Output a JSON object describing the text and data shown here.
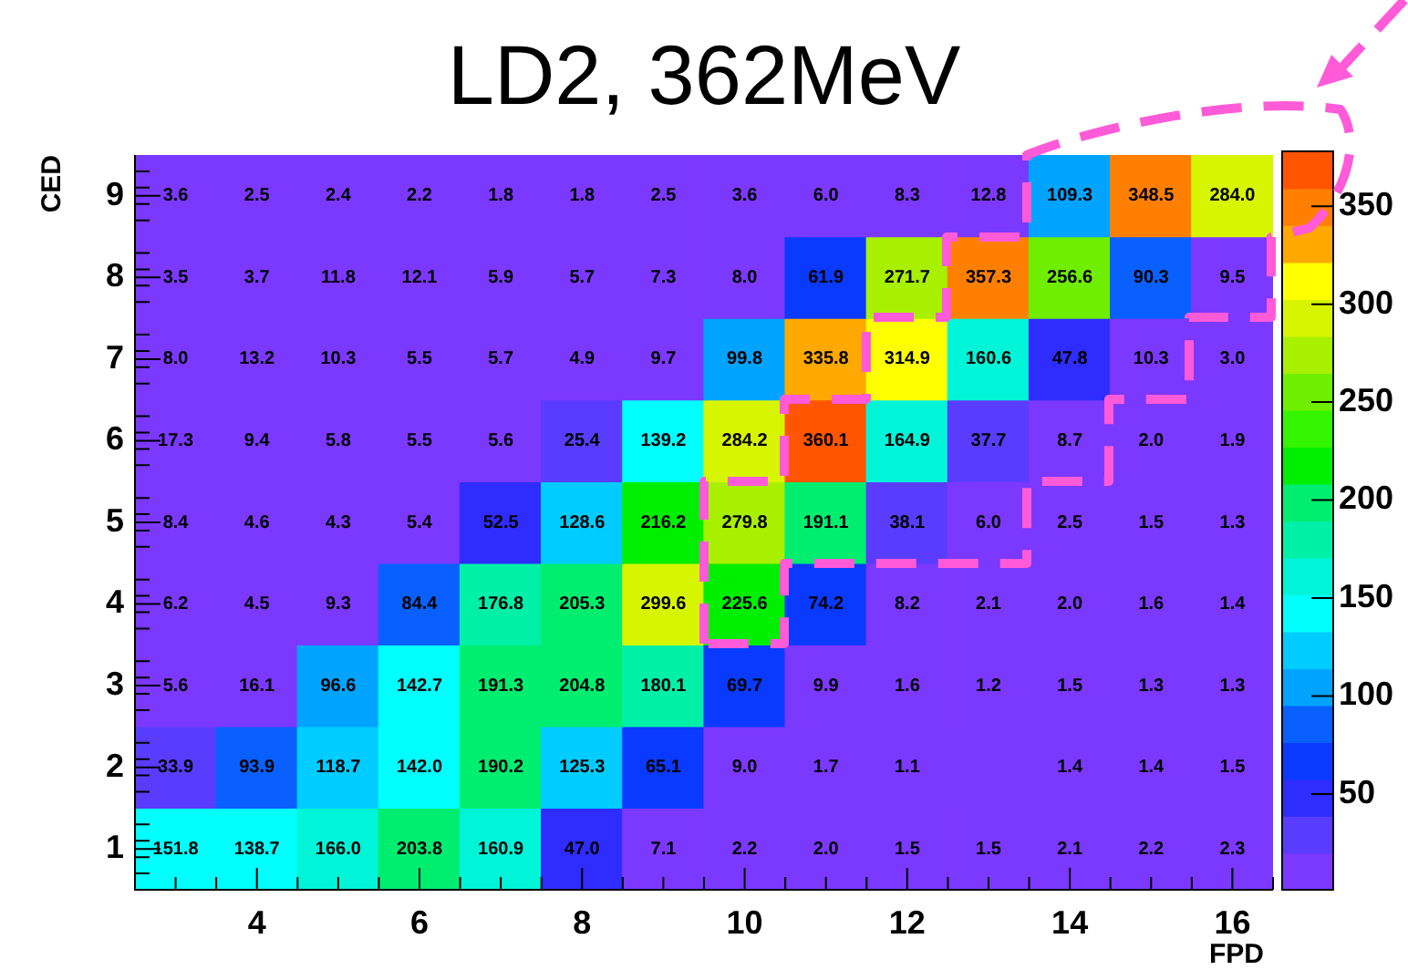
{
  "chart_data": {
    "type": "heatmap",
    "title": "LD2, 362MeV",
    "xlabel": "FPD",
    "ylabel": "CED",
    "categories": [
      null,
      "4",
      null,
      "6",
      null,
      "8",
      null,
      "10",
      null,
      "12",
      null,
      "14",
      null,
      "16"
    ],
    "y_categories": [
      "9",
      "8",
      "7",
      "6",
      "5",
      "4",
      "3",
      "2",
      "1"
    ],
    "cells": [
      [
        3.6,
        2.5,
        2.4,
        2.2,
        1.8,
        1.8,
        2.5,
        3.6,
        6.0,
        8.3,
        12.8,
        109.3,
        348.5,
        284.0
      ],
      [
        3.5,
        3.7,
        11.8,
        12.1,
        5.9,
        5.7,
        7.3,
        8.0,
        61.9,
        271.7,
        357.3,
        256.6,
        90.3,
        9.5
      ],
      [
        8.0,
        13.2,
        10.3,
        5.5,
        5.7,
        4.9,
        9.7,
        99.8,
        335.8,
        314.9,
        160.6,
        47.8,
        10.3,
        3.0
      ],
      [
        17.3,
        9.4,
        5.8,
        5.5,
        5.6,
        25.4,
        139.2,
        284.2,
        360.1,
        164.9,
        37.7,
        8.7,
        2.0,
        1.9
      ],
      [
        8.4,
        4.6,
        4.3,
        5.4,
        52.5,
        128.6,
        216.2,
        279.8,
        191.1,
        38.1,
        6.0,
        2.5,
        1.5,
        1.3
      ],
      [
        6.2,
        4.5,
        9.3,
        84.4,
        176.8,
        205.3,
        299.6,
        225.6,
        74.2,
        8.2,
        2.1,
        2.0,
        1.6,
        1.4
      ],
      [
        5.6,
        16.1,
        96.6,
        142.7,
        191.3,
        204.8,
        180.1,
        69.7,
        9.9,
        1.6,
        1.2,
        1.5,
        1.3,
        1.3
      ],
      [
        33.9,
        93.9,
        118.7,
        142.0,
        190.2,
        125.3,
        65.1,
        9.0,
        1.7,
        1.1,
        null,
        1.4,
        1.4,
        1.5
      ],
      [
        151.8,
        138.7,
        166.0,
        203.8,
        160.9,
        47.0,
        7.1,
        2.2,
        2.0,
        1.5,
        1.5,
        2.1,
        2.2,
        2.3
      ]
    ],
    "cell_labels": [
      [
        "3.6",
        "2.5",
        "2.4",
        "2.2",
        "1.8",
        "1.8",
        "2.5",
        "3.6",
        "6.0",
        "8.3",
        "12.8",
        "109.3",
        "348.5",
        "284.0"
      ],
      [
        "3.5",
        "3.7",
        "11.8",
        "12.1",
        "5.9",
        "5.7",
        "7.3",
        "8.0",
        "61.9",
        "271.7",
        "357.3",
        "256.6",
        "90.3",
        "9.5"
      ],
      [
        "8.0",
        "13.2",
        "10.3",
        "5.5",
        "5.7",
        "4.9",
        "9.7",
        "99.8",
        "335.8",
        "314.9",
        "160.6",
        "47.8",
        "10.3",
        "3.0"
      ],
      [
        "17.3",
        "9.4",
        "5.8",
        "5.5",
        "5.6",
        "25.4",
        "139.2",
        "284.2",
        "360.1",
        "164.9",
        "37.7",
        "8.7",
        "2.0",
        "1.9"
      ],
      [
        "8.4",
        "4.6",
        "4.3",
        "5.4",
        "52.5",
        "128.6",
        "216.2",
        "279.8",
        "191.1",
        "38.1",
        "6.0",
        "2.5",
        "1.5",
        "1.3"
      ],
      [
        "6.2",
        "4.5",
        "9.3",
        "84.4",
        "176.8",
        "205.3",
        "299.6",
        "225.6",
        "74.2",
        "8.2",
        "2.1",
        "2.0",
        "1.6",
        "1.4"
      ],
      [
        "5.6",
        "16.1",
        "96.6",
        "142.7",
        "191.3",
        "204.8",
        "180.1",
        "69.7",
        "9.9",
        "1.6",
        "1.2",
        "1.5",
        "1.3",
        "1.3"
      ],
      [
        "33.9",
        "93.9",
        "118.7",
        "142.0",
        "190.2",
        "125.3",
        "65.1",
        "9.0",
        "1.7",
        "1.1",
        null,
        "1.4",
        "1.4",
        "1.5"
      ],
      [
        "151.8",
        "138.7",
        "166.0",
        "203.8",
        "160.9",
        "47.0",
        "7.1",
        "2.2",
        "2.0",
        "1.5",
        "1.5",
        "2.1",
        "2.2",
        "2.3"
      ]
    ],
    "clim": [
      1.1,
      378
    ],
    "cticks": [
      50,
      100,
      150,
      200,
      250,
      300,
      350
    ]
  }
}
